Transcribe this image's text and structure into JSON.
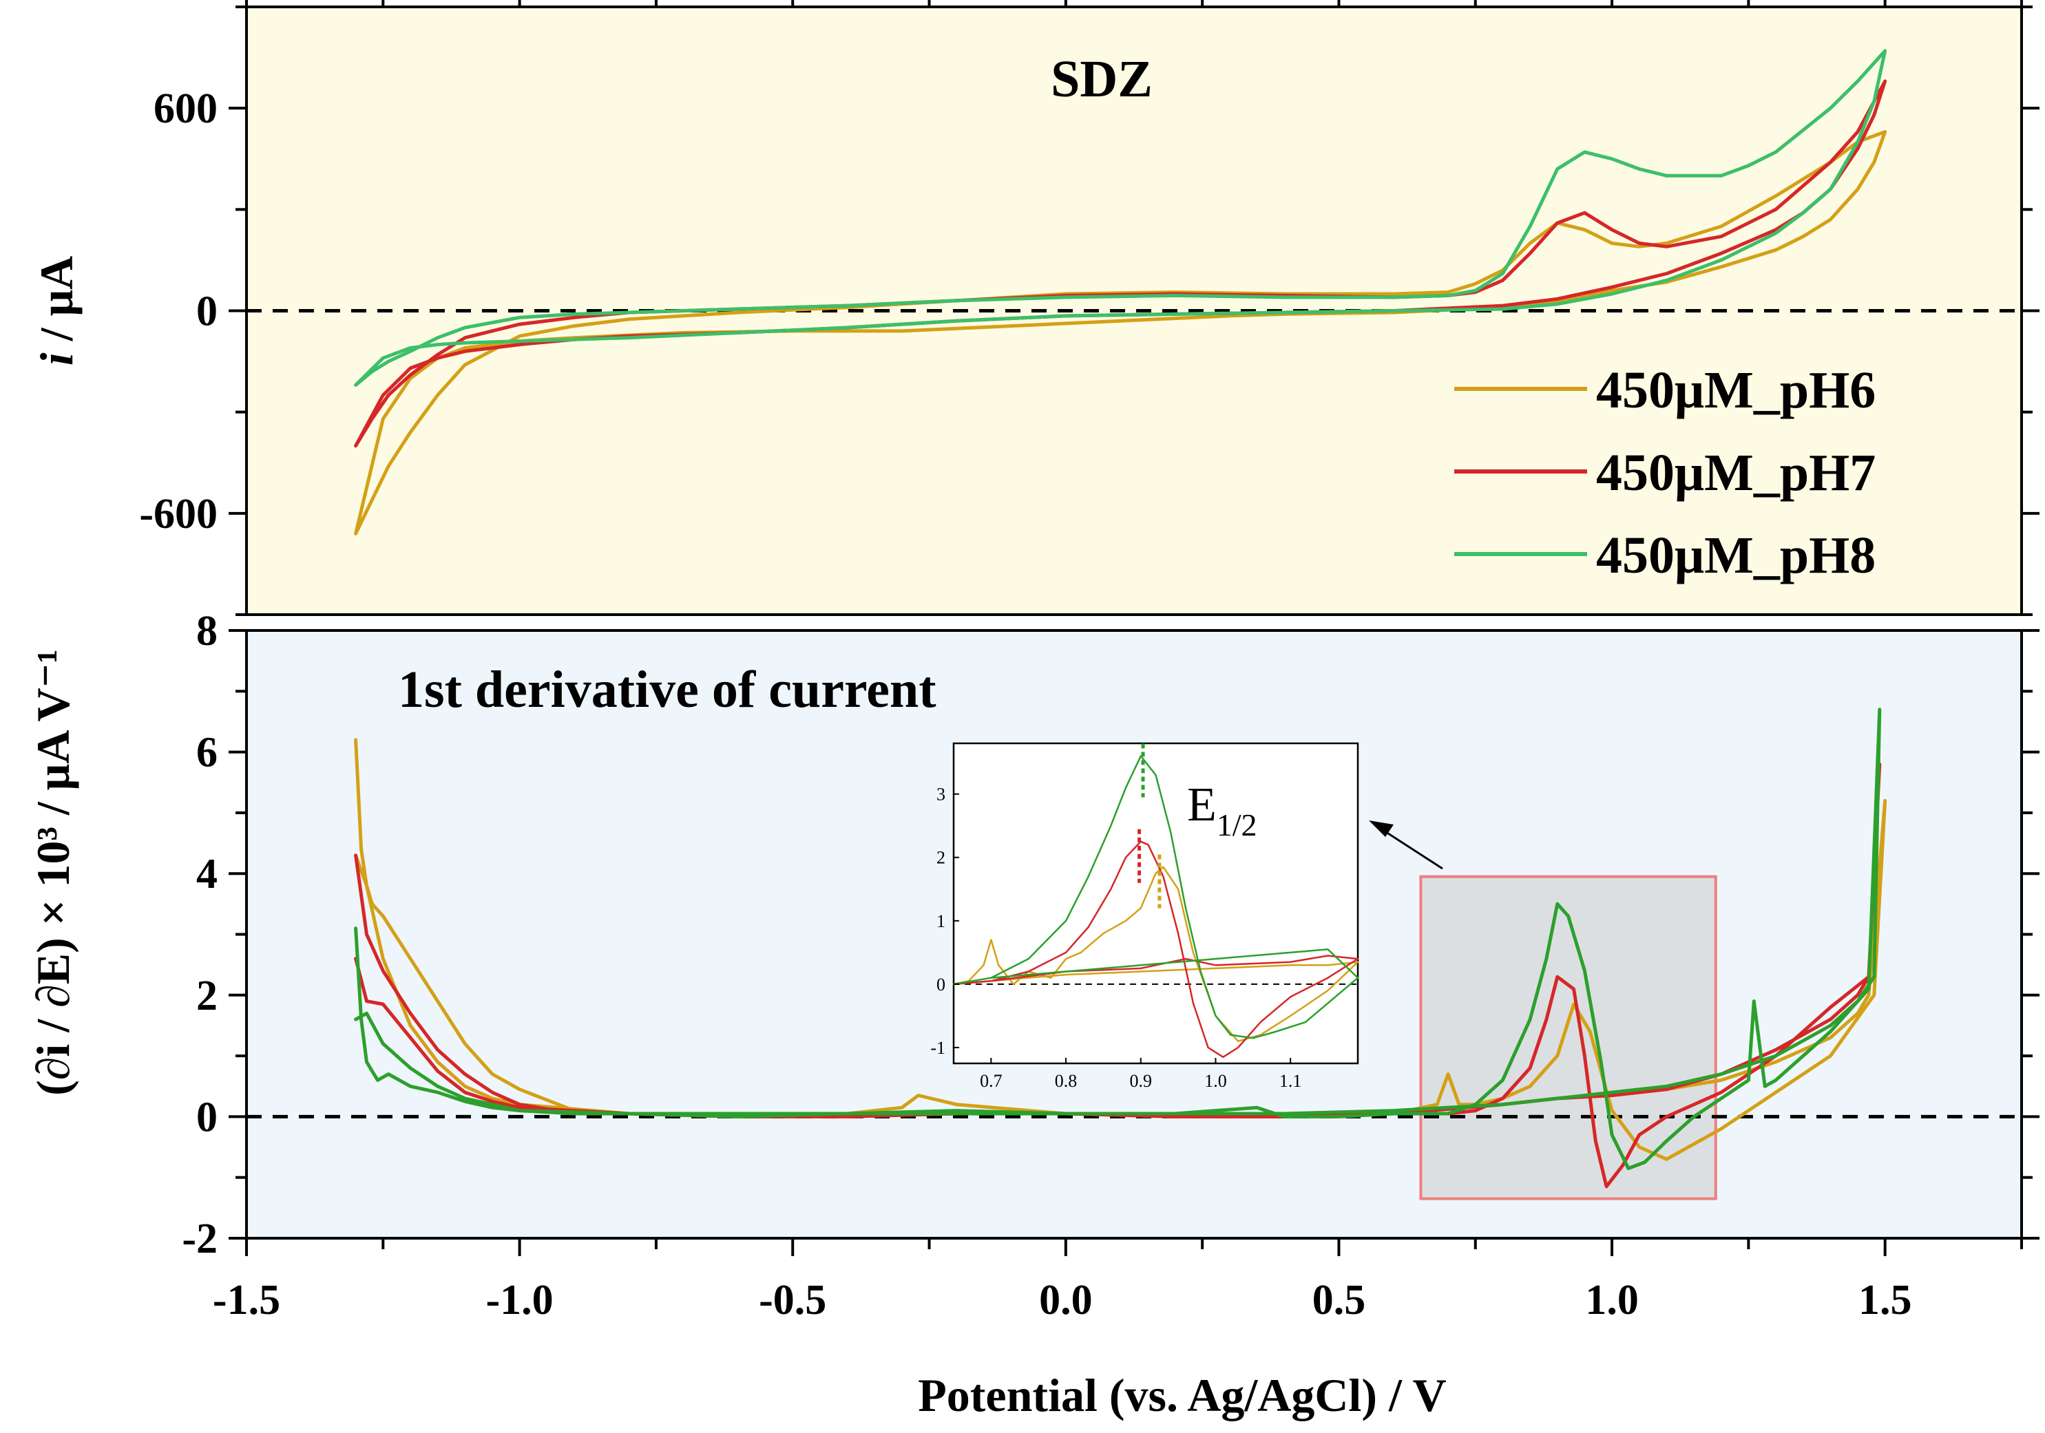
{
  "colors": {
    "pH6": "#d4a017",
    "pH7": "#d62728",
    "pH8": "#3cbf6a",
    "pH8_derivative": "#2ca02c",
    "top_background": "#fdfbe4",
    "bottom_background": "#eef6fc",
    "highlight_box_fill": "#dcdfe2",
    "highlight_box_stroke": "#ee7f7f"
  },
  "chart_data": [
    {
      "type": "line",
      "title": "SDZ",
      "ylabel_italic": "i",
      "ylabel_rest": " / μA",
      "xlim": [
        -1.5,
        1.75
      ],
      "ylim": [
        -900,
        900
      ],
      "yticks": [
        -600,
        0,
        600
      ],
      "ytick_labels": [
        "-600",
        "0",
        "600"
      ],
      "zero_line": true,
      "legend": {
        "placement": "lower-right",
        "entries": [
          "450μM_pH6",
          "450μM_pH7",
          "450μM_pH8"
        ]
      },
      "series": [
        {
          "name": "450μM_pH6",
          "color": "#d4a017",
          "x": [
            -1.3,
            -1.27,
            -1.24,
            -1.2,
            -1.15,
            -1.1,
            -1.0,
            -0.9,
            -0.8,
            -0.6,
            -0.4,
            -0.2,
            0.0,
            0.2,
            0.4,
            0.6,
            0.7,
            0.75,
            0.8,
            0.85,
            0.9,
            0.95,
            1.0,
            1.05,
            1.1,
            1.2,
            1.3,
            1.4,
            1.45,
            1.5,
            1.48,
            1.45,
            1.4,
            1.35,
            1.3,
            1.2,
            1.1,
            1.0,
            0.9,
            0.8,
            0.6,
            0.4,
            0.3,
            0.1,
            -0.1,
            -0.3,
            -0.5,
            -0.7,
            -0.9,
            -1.0,
            -1.1,
            -1.15,
            -1.2,
            -1.25,
            -1.3
          ],
          "y": [
            -660,
            -560,
            -460,
            -360,
            -250,
            -160,
            -75,
            -45,
            -25,
            -5,
            10,
            30,
            50,
            55,
            50,
            50,
            55,
            80,
            120,
            200,
            260,
            240,
            200,
            190,
            200,
            250,
            340,
            440,
            500,
            530,
            440,
            360,
            270,
            220,
            180,
            130,
            85,
            60,
            30,
            10,
            -5,
            -10,
            -15,
            -30,
            -45,
            -60,
            -60,
            -65,
            -80,
            -90,
            -110,
            -140,
            -200,
            -320,
            -660
          ]
        },
        {
          "name": "450μM_pH7",
          "color": "#d62728",
          "x": [
            -1.3,
            -1.27,
            -1.24,
            -1.2,
            -1.15,
            -1.1,
            -1.0,
            -0.9,
            -0.8,
            -0.6,
            -0.4,
            -0.2,
            0.0,
            0.2,
            0.4,
            0.6,
            0.7,
            0.75,
            0.8,
            0.85,
            0.9,
            0.95,
            1.0,
            1.05,
            1.1,
            1.2,
            1.3,
            1.4,
            1.45,
            1.5,
            1.48,
            1.45,
            1.4,
            1.35,
            1.3,
            1.2,
            1.1,
            1.0,
            0.9,
            0.8,
            0.6,
            0.4,
            0.2,
            0.0,
            -0.2,
            -0.4,
            -0.6,
            -0.8,
            -0.9,
            -1.0,
            -1.1,
            -1.15,
            -1.2,
            -1.25,
            -1.3
          ],
          "y": [
            -400,
            -320,
            -250,
            -190,
            -130,
            -80,
            -40,
            -20,
            -5,
            5,
            15,
            30,
            45,
            50,
            45,
            40,
            45,
            55,
            90,
            170,
            260,
            290,
            240,
            200,
            190,
            220,
            300,
            440,
            530,
            680,
            580,
            480,
            360,
            290,
            240,
            170,
            110,
            70,
            35,
            15,
            0,
            -5,
            -10,
            -15,
            -30,
            -50,
            -65,
            -75,
            -85,
            -100,
            -120,
            -140,
            -170,
            -250,
            -400
          ]
        },
        {
          "name": "450μM_pH8",
          "color": "#3cbf6a",
          "x": [
            -1.3,
            -1.27,
            -1.24,
            -1.2,
            -1.15,
            -1.1,
            -1.0,
            -0.9,
            -0.8,
            -0.6,
            -0.4,
            -0.2,
            0.0,
            0.2,
            0.4,
            0.6,
            0.7,
            0.75,
            0.8,
            0.85,
            0.9,
            0.95,
            1.0,
            1.05,
            1.1,
            1.2,
            1.25,
            1.3,
            1.4,
            1.45,
            1.5,
            1.48,
            1.45,
            1.4,
            1.35,
            1.3,
            1.2,
            1.1,
            1.0,
            0.9,
            0.8,
            0.6,
            0.4,
            0.2,
            0.0,
            -0.2,
            -0.4,
            -0.6,
            -0.8,
            -0.9,
            -1.0,
            -1.1,
            -1.15,
            -1.2,
            -1.25,
            -1.3
          ],
          "y": [
            -220,
            -180,
            -150,
            -120,
            -80,
            -50,
            -20,
            -10,
            -5,
            5,
            15,
            30,
            40,
            45,
            40,
            40,
            45,
            60,
            110,
            250,
            420,
            470,
            450,
            420,
            400,
            400,
            430,
            470,
            600,
            680,
            770,
            620,
            500,
            360,
            290,
            230,
            150,
            90,
            50,
            20,
            5,
            0,
            -5,
            -10,
            -15,
            -30,
            -50,
            -65,
            -80,
            -85,
            -90,
            -95,
            -100,
            -110,
            -140,
            -220
          ]
        }
      ]
    },
    {
      "type": "line",
      "title": "1st derivative of current",
      "ylabel": "(∂i / ∂E) × 10³ / μA V⁻¹",
      "xlabel": "Potential (vs. Ag/AgCl)  / V",
      "xlim": [
        -1.5,
        1.75
      ],
      "ylim": [
        -2,
        8
      ],
      "xticks": [
        -1.5,
        -1.0,
        -0.5,
        0.0,
        0.5,
        1.0,
        1.5
      ],
      "xtick_labels": [
        "-1.5",
        "-1.0",
        "-0.5",
        "0.0",
        "0.5",
        "1.0",
        "1.5"
      ],
      "yticks": [
        -2,
        0,
        2,
        4,
        6,
        8
      ],
      "ytick_labels": [
        "-2",
        "0",
        "2",
        "4",
        "6",
        "8"
      ],
      "zero_line": true,
      "highlight_box": {
        "x": [
          0.65,
          1.19
        ],
        "y": [
          -1.35,
          3.95
        ]
      },
      "series": [
        {
          "name": "450μM_pH6",
          "color": "#d4a017",
          "x": [
            -1.3,
            -1.29,
            -1.28,
            -1.27,
            -1.25,
            -1.2,
            -1.15,
            -1.1,
            -1.05,
            -1.0,
            -0.9,
            -0.8,
            -0.6,
            -0.4,
            -0.3,
            -0.27,
            -0.2,
            0.0,
            0.2,
            0.4,
            0.6,
            0.68,
            0.7,
            0.72,
            0.75,
            0.8,
            0.85,
            0.9,
            0.93,
            0.96,
            1.0,
            1.05,
            1.1,
            1.2,
            1.3,
            1.4,
            1.48,
            1.5,
            1.47,
            1.45,
            1.4,
            1.3,
            1.2,
            1.1,
            1.0,
            0.9,
            0.8,
            0.6,
            0.4,
            0.2,
            0.0,
            -0.2,
            -0.4,
            -0.6,
            -0.8,
            -1.0,
            -1.05,
            -1.1,
            -1.15,
            -1.2,
            -1.25,
            -1.28,
            -1.3
          ],
          "y": [
            6.2,
            4.4,
            3.8,
            3.5,
            3.3,
            2.6,
            1.9,
            1.2,
            0.7,
            0.45,
            0.1,
            0.05,
            0.0,
            0.05,
            0.15,
            0.35,
            0.2,
            0.05,
            0.05,
            0.05,
            0.05,
            0.2,
            0.7,
            0.2,
            0.2,
            0.3,
            0.5,
            1.0,
            1.85,
            1.4,
            0.1,
            -0.5,
            -0.7,
            -0.2,
            0.4,
            1.0,
            2.0,
            5.2,
            2.0,
            1.7,
            1.3,
            0.9,
            0.6,
            0.45,
            0.35,
            0.3,
            0.2,
            0.05,
            0.0,
            0.0,
            0.05,
            0.05,
            0.0,
            0.05,
            0.05,
            0.2,
            0.3,
            0.5,
            0.9,
            1.5,
            2.6,
            3.8,
            4.3
          ]
        },
        {
          "name": "450μM_pH7",
          "color": "#d62728",
          "x": [
            -1.3,
            -1.28,
            -1.25,
            -1.2,
            -1.15,
            -1.1,
            -1.05,
            -1.0,
            -0.9,
            -0.8,
            -0.6,
            -0.4,
            -0.2,
            0.0,
            0.2,
            0.4,
            0.6,
            0.7,
            0.75,
            0.8,
            0.85,
            0.88,
            0.9,
            0.93,
            0.95,
            0.97,
            0.99,
            1.02,
            1.05,
            1.1,
            1.2,
            1.3,
            1.4,
            1.47,
            1.49,
            1.47,
            1.45,
            1.4,
            1.3,
            1.2,
            1.1,
            1.0,
            0.9,
            0.8,
            0.6,
            0.4,
            0.2,
            0.0,
            -0.2,
            -0.4,
            -0.6,
            -0.8,
            -1.0,
            -1.05,
            -1.1,
            -1.15,
            -1.2,
            -1.25,
            -1.28,
            -1.3
          ],
          "y": [
            4.3,
            3.0,
            2.4,
            1.7,
            1.1,
            0.7,
            0.4,
            0.2,
            0.05,
            0.05,
            0.0,
            0.0,
            0.05,
            0.05,
            0.05,
            0.05,
            0.05,
            0.05,
            0.1,
            0.3,
            0.8,
            1.6,
            2.3,
            2.1,
            1.0,
            -0.4,
            -1.15,
            -0.8,
            -0.3,
            0.0,
            0.4,
            1.0,
            1.8,
            2.3,
            5.8,
            2.3,
            2.0,
            1.6,
            1.1,
            0.7,
            0.45,
            0.35,
            0.3,
            0.2,
            0.05,
            0.0,
            0.0,
            0.05,
            0.05,
            0.0,
            0.05,
            0.05,
            0.15,
            0.25,
            0.4,
            0.75,
            1.3,
            1.85,
            1.9,
            2.6
          ]
        },
        {
          "name": "450μM_pH8",
          "color": "#2ca02c",
          "x": [
            -1.3,
            -1.29,
            -1.28,
            -1.26,
            -1.24,
            -1.2,
            -1.15,
            -1.1,
            -1.05,
            -1.0,
            -0.9,
            -0.8,
            -0.6,
            -0.4,
            -0.2,
            0.0,
            0.2,
            0.35,
            0.4,
            0.5,
            0.6,
            0.7,
            0.75,
            0.8,
            0.85,
            0.88,
            0.9,
            0.92,
            0.95,
            0.98,
            1.0,
            1.03,
            1.06,
            1.1,
            1.15,
            1.2,
            1.25,
            1.26,
            1.28,
            1.3,
            1.4,
            1.47,
            1.49,
            1.48,
            1.45,
            1.4,
            1.3,
            1.2,
            1.1,
            1.0,
            0.9,
            0.8,
            0.6,
            0.4,
            0.2,
            0.0,
            -0.2,
            -0.4,
            -0.6,
            -0.8,
            -1.0,
            -1.05,
            -1.1,
            -1.15,
            -1.2,
            -1.25,
            -1.28,
            -1.3
          ],
          "y": [
            3.1,
            1.6,
            0.9,
            0.6,
            0.7,
            0.5,
            0.4,
            0.25,
            0.15,
            0.1,
            0.05,
            0.05,
            0.0,
            0.05,
            0.1,
            0.05,
            0.05,
            0.15,
            0.0,
            0.0,
            0.05,
            0.05,
            0.2,
            0.6,
            1.6,
            2.6,
            3.5,
            3.3,
            2.4,
            0.9,
            -0.3,
            -0.85,
            -0.75,
            -0.4,
            0.0,
            0.3,
            0.6,
            1.9,
            0.5,
            0.6,
            1.4,
            2.1,
            6.7,
            2.3,
            1.9,
            1.5,
            1.0,
            0.7,
            0.5,
            0.4,
            0.3,
            0.2,
            0.1,
            0.05,
            0.05,
            0.05,
            0.05,
            0.05,
            0.05,
            0.05,
            0.1,
            0.2,
            0.3,
            0.5,
            0.8,
            1.2,
            1.7,
            1.6
          ]
        }
      ]
    },
    {
      "type": "line",
      "title": "",
      "annotation_main": "E",
      "annotation_sub": "1/2",
      "xlim": [
        0.65,
        1.19
      ],
      "ylim": [
        -1.25,
        3.8
      ],
      "xticks": [
        0.7,
        0.8,
        0.9,
        1.0,
        1.1
      ],
      "xtick_labels": [
        "0.7",
        "0.8",
        "0.9",
        "1.0",
        "1.1"
      ],
      "yticks": [
        -1,
        0,
        1,
        2,
        3
      ],
      "ytick_labels": [
        "-1",
        "0",
        "1",
        "2",
        "3"
      ],
      "zero_line": true,
      "half_wave_markers": [
        {
          "series": "450μM_pH8",
          "x": 0.903,
          "y": 3.6
        },
        {
          "series": "450μM_pH7",
          "x": 0.898,
          "y": 2.25
        },
        {
          "series": "450μM_pH6",
          "x": 0.925,
          "y": 1.85
        }
      ],
      "series": [
        {
          "name": "450μM_pH6",
          "color": "#d4a017",
          "x": [
            0.65,
            0.67,
            0.69,
            0.7,
            0.71,
            0.73,
            0.75,
            0.78,
            0.8,
            0.82,
            0.85,
            0.88,
            0.9,
            0.92,
            0.93,
            0.95,
            0.97,
            1.0,
            1.03,
            1.06,
            1.1,
            1.15,
            1.19,
            1.15,
            1.1,
            1.0,
            0.9,
            0.8,
            0.7,
            0.65
          ],
          "y": [
            0.0,
            0.05,
            0.3,
            0.7,
            0.3,
            0.0,
            0.2,
            0.1,
            0.4,
            0.5,
            0.8,
            1.0,
            1.2,
            1.75,
            1.85,
            1.5,
            0.5,
            -0.5,
            -0.9,
            -0.8,
            -0.5,
            -0.1,
            0.35,
            0.3,
            0.3,
            0.25,
            0.2,
            0.15,
            0.05,
            0.0
          ]
        },
        {
          "name": "450μM_pH7",
          "color": "#d62728",
          "x": [
            0.65,
            0.7,
            0.75,
            0.8,
            0.83,
            0.86,
            0.88,
            0.9,
            0.91,
            0.93,
            0.95,
            0.97,
            0.99,
            1.01,
            1.03,
            1.06,
            1.1,
            1.15,
            1.19,
            1.15,
            1.1,
            1.0,
            0.96,
            0.9,
            0.8,
            0.7,
            0.65
          ],
          "y": [
            0.0,
            0.05,
            0.2,
            0.5,
            0.9,
            1.5,
            2.0,
            2.25,
            2.2,
            1.7,
            0.8,
            -0.3,
            -1.0,
            -1.15,
            -1.0,
            -0.6,
            -0.2,
            0.1,
            0.4,
            0.45,
            0.35,
            0.3,
            0.4,
            0.25,
            0.2,
            0.05,
            0.0
          ]
        },
        {
          "name": "450μM_pH8",
          "color": "#2ca02c",
          "x": [
            0.65,
            0.7,
            0.75,
            0.8,
            0.83,
            0.86,
            0.88,
            0.9,
            0.92,
            0.94,
            0.96,
            0.98,
            1.0,
            1.02,
            1.05,
            1.08,
            1.12,
            1.16,
            1.19,
            1.15,
            1.1,
            1.0,
            0.9,
            0.8,
            0.7,
            0.65
          ],
          "y": [
            0.0,
            0.1,
            0.4,
            1.0,
            1.7,
            2.5,
            3.1,
            3.6,
            3.3,
            2.4,
            1.2,
            0.2,
            -0.5,
            -0.8,
            -0.85,
            -0.75,
            -0.6,
            -0.2,
            0.1,
            0.55,
            0.5,
            0.4,
            0.3,
            0.2,
            0.1,
            0.0
          ]
        }
      ]
    }
  ]
}
